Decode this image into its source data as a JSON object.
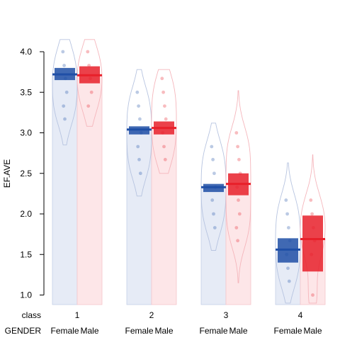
{
  "chart_data": {
    "type": "bar",
    "style": "pirateplot",
    "ylabel": "EF.AVE",
    "ylim": [
      0.9,
      4.1
    ],
    "yticks": [
      1.0,
      1.5,
      2.0,
      2.5,
      3.0,
      3.5,
      4.0
    ],
    "ytick_labels": [
      "1.0",
      "1.5",
      "2.0",
      "2.5",
      "3.0",
      "3.5",
      "4.0"
    ],
    "grid": false,
    "legend": "none",
    "row_labels": {
      "class": "class",
      "gender": "GENDER"
    },
    "groups": [
      "1",
      "2",
      "3",
      "4"
    ],
    "genders": [
      "Female",
      "Male"
    ],
    "colors": {
      "Female": "#1f4fa6",
      "Male": "#e8202a"
    },
    "series": [
      {
        "name": "Female",
        "values": [
          3.72,
          3.04,
          2.33,
          1.56
        ],
        "ci": [
          [
            3.65,
            3.8
          ],
          [
            2.98,
            3.08
          ],
          [
            2.27,
            2.37
          ],
          [
            1.4,
            1.7
          ]
        ],
        "range": [
          [
            2.85,
            4.15
          ],
          [
            2.22,
            3.78
          ],
          [
            1.55,
            3.12
          ],
          [
            0.9,
            2.63
          ]
        ],
        "points": [
          [
            4.0,
            3.83,
            3.67,
            3.5,
            3.33,
            3.17
          ],
          [
            3.5,
            3.33,
            3.17,
            3.0,
            2.83,
            2.67,
            2.5
          ],
          [
            2.83,
            2.67,
            2.5,
            2.33,
            2.17,
            2.0,
            1.83
          ],
          [
            2.17,
            2.0,
            1.83,
            1.67,
            1.5,
            1.33,
            1.17
          ]
        ]
      },
      {
        "name": "Male",
        "values": [
          3.71,
          3.06,
          2.37,
          1.69
        ],
        "ci": [
          [
            3.61,
            3.82
          ],
          [
            2.98,
            3.14
          ],
          [
            2.23,
            2.5
          ],
          [
            1.29,
            1.98
          ]
        ],
        "range": [
          [
            3.08,
            4.15
          ],
          [
            2.5,
            3.78
          ],
          [
            1.15,
            3.52
          ],
          [
            0.9,
            2.73
          ]
        ],
        "points": [
          [
            4.0,
            3.83,
            3.67,
            3.5,
            3.33
          ],
          [
            3.67,
            3.5,
            3.33,
            3.17,
            3.0,
            2.83,
            2.67
          ],
          [
            3.0,
            2.83,
            2.67,
            2.5,
            2.33,
            2.17,
            2.0,
            1.83,
            1.67
          ],
          [
            2.17,
            2.0,
            1.83,
            1.67,
            1.5,
            1.0
          ]
        ]
      }
    ]
  }
}
